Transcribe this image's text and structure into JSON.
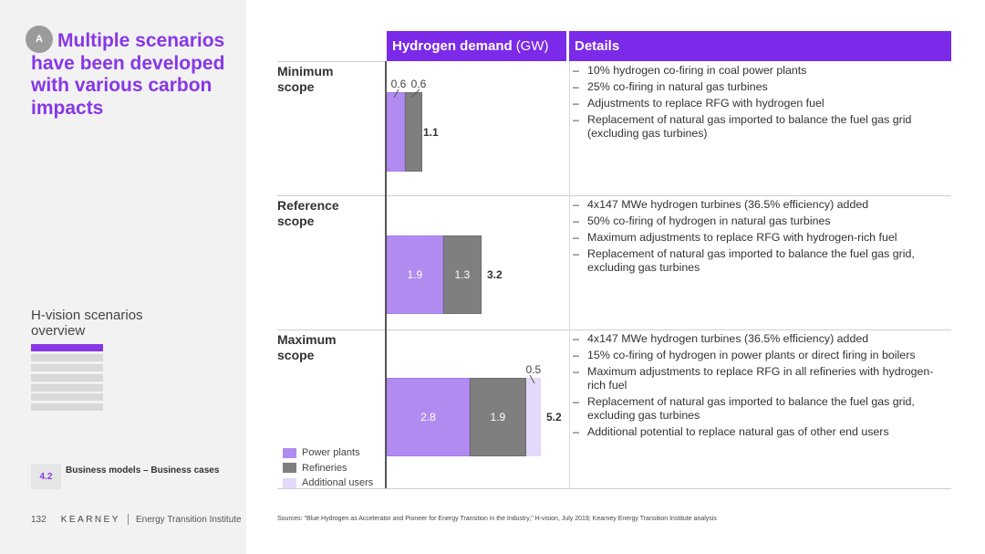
{
  "slide": {
    "badge": "A",
    "title": "Multiple scenarios have been developed with various carbon impacts",
    "overview_title": "H-vision scenarios overview",
    "section_number": "4.2",
    "section_label": "Business models – Business cases",
    "page_number": "132",
    "brand": "KEARNEY",
    "institute": "Energy Transition Institute",
    "sources": "Sources: \"Blue Hydrogen as Accelerator and Pioneer for Energy Transition in the Industry,\" H-vision, July 2019; Kearney Energy Transition Institute analysis"
  },
  "colors": {
    "accent": "#7a2ae8",
    "power_plants": "#b18cf0",
    "refineries": "#7f7f7f",
    "additional_users": "#e4d8fb"
  },
  "headers": {
    "demand": "Hydrogen demand",
    "demand_unit": "(GW)",
    "details": "Details"
  },
  "chart_data": {
    "type": "bar",
    "orientation": "horizontal",
    "stacked": true,
    "title": "Hydrogen demand (GW)",
    "categories": [
      "Minimum scope",
      "Reference scope",
      "Maximum scope"
    ],
    "series": [
      {
        "name": "Power plants",
        "values": [
          0.6,
          1.9,
          2.8
        ]
      },
      {
        "name": "Refineries",
        "values": [
          0.6,
          1.3,
          1.9
        ]
      },
      {
        "name": "Additional users",
        "values": [
          0,
          0,
          0.5
        ]
      }
    ],
    "totals": [
      1.1,
      3.2,
      5.2
    ],
    "legend": [
      "Power plants",
      "Refineries",
      "Additional users"
    ],
    "legend_position": "bottom-left"
  },
  "scopes": [
    {
      "label_line1": "Minimum",
      "label_line2": "scope",
      "power_label": "0.6",
      "refineries_label": "0.6",
      "total_label": "1.1",
      "details": [
        "10% hydrogen co-firing in coal power plants",
        "25% co-firing in natural gas turbines",
        "Adjustments to replace RFG with hydrogen fuel",
        "Replacement of natural gas imported to balance the fuel gas grid (excluding gas turbines)"
      ]
    },
    {
      "label_line1": "Reference",
      "label_line2": "scope",
      "power_label": "1.9",
      "refineries_label": "1.3",
      "total_label": "3.2",
      "details": [
        "4x147 MWe hydrogen turbines (36.5% efficiency) added",
        "50% co-firing of hydrogen in natural gas turbines",
        "Maximum adjustments to replace RFG with hydrogen-rich fuel",
        "Replacement of natural gas imported to balance the fuel gas grid, excluding gas turbines"
      ]
    },
    {
      "label_line1": "Maximum",
      "label_line2": "scope",
      "power_label": "2.8",
      "refineries_label": "1.9",
      "additional_label": "0.5",
      "total_label": "5.2",
      "details": [
        "4x147 MWe hydrogen turbines (36.5% efficiency) added",
        "15% co-firing of hydrogen in power plants or direct firing in boilers",
        "Maximum adjustments to replace RFG in all refineries with hydrogen-rich fuel",
        "Replacement of natural gas imported to balance the fuel gas grid, excluding gas turbines",
        "Additional potential to replace natural gas of other end users"
      ]
    }
  ]
}
